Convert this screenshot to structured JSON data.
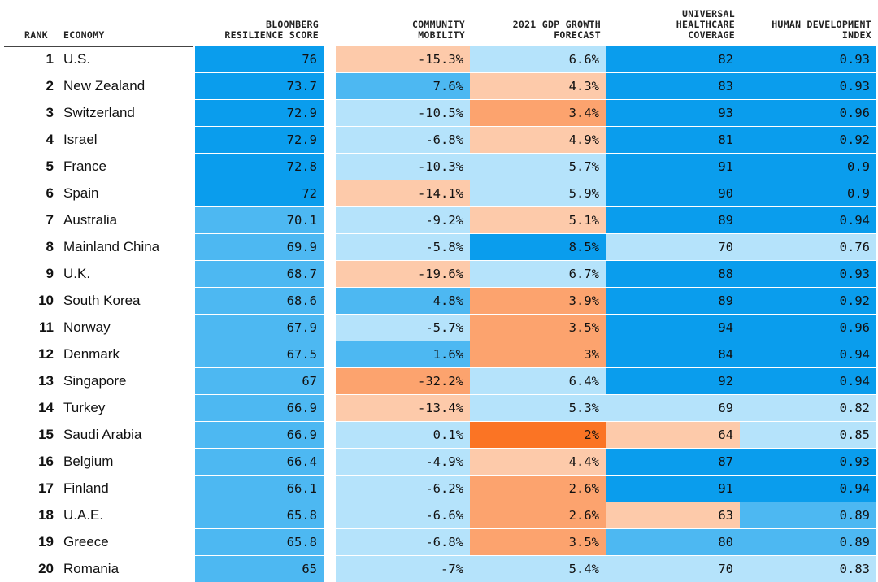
{
  "table": {
    "columns": [
      [
        "RANK"
      ],
      [
        "ECONOMY"
      ],
      [
        "BLOOMBERG",
        "RESILIENCE SCORE"
      ],
      [
        "COMMUNITY",
        "MOBILITY"
      ],
      [
        "2021 GDP GROWTH",
        "FORECAST"
      ],
      [
        "UNIVERSAL",
        "HEALTHCARE",
        "COVERAGE"
      ],
      [
        "HUMAN DEVELOPMENT",
        "INDEX"
      ]
    ],
    "rows": [
      {
        "rank": 1,
        "economy": "U.S.",
        "cells": [
          {
            "text": "76",
            "color": "#0a9ded"
          },
          {
            "text": "-15.3%",
            "color": "#fdcaaa"
          },
          {
            "text": "6.6%",
            "color": "#b5e3fb"
          },
          {
            "text": "82",
            "color": "#0a9ded"
          },
          {
            "text": "0.93",
            "color": "#0a9ded"
          }
        ]
      },
      {
        "rank": 2,
        "economy": "New Zealand",
        "cells": [
          {
            "text": "73.7",
            "color": "#0a9ded"
          },
          {
            "text": "7.6%",
            "color": "#4db8f2"
          },
          {
            "text": "4.3%",
            "color": "#fdcaaa"
          },
          {
            "text": "83",
            "color": "#0a9ded"
          },
          {
            "text": "0.93",
            "color": "#0a9ded"
          }
        ]
      },
      {
        "rank": 3,
        "economy": "Switzerland",
        "cells": [
          {
            "text": "72.9",
            "color": "#0a9ded"
          },
          {
            "text": "-10.5%",
            "color": "#b5e3fb"
          },
          {
            "text": "3.4%",
            "color": "#fca36e"
          },
          {
            "text": "93",
            "color": "#0a9ded"
          },
          {
            "text": "0.96",
            "color": "#0a9ded"
          }
        ]
      },
      {
        "rank": 4,
        "economy": "Israel",
        "cells": [
          {
            "text": "72.9",
            "color": "#0a9ded"
          },
          {
            "text": "-6.8%",
            "color": "#b5e3fb"
          },
          {
            "text": "4.9%",
            "color": "#fdcaaa"
          },
          {
            "text": "81",
            "color": "#0a9ded"
          },
          {
            "text": "0.92",
            "color": "#0a9ded"
          }
        ]
      },
      {
        "rank": 5,
        "economy": "France",
        "cells": [
          {
            "text": "72.8",
            "color": "#0a9ded"
          },
          {
            "text": "-10.3%",
            "color": "#b5e3fb"
          },
          {
            "text": "5.7%",
            "color": "#b5e3fb"
          },
          {
            "text": "91",
            "color": "#0a9ded"
          },
          {
            "text": "0.9",
            "color": "#0a9ded"
          }
        ]
      },
      {
        "rank": 6,
        "economy": "Spain",
        "cells": [
          {
            "text": "72",
            "color": "#0a9ded"
          },
          {
            "text": "-14.1%",
            "color": "#fdcaaa"
          },
          {
            "text": "5.9%",
            "color": "#b5e3fb"
          },
          {
            "text": "90",
            "color": "#0a9ded"
          },
          {
            "text": "0.9",
            "color": "#0a9ded"
          }
        ]
      },
      {
        "rank": 7,
        "economy": "Australia",
        "cells": [
          {
            "text": "70.1",
            "color": "#4db8f2"
          },
          {
            "text": "-9.2%",
            "color": "#b5e3fb"
          },
          {
            "text": "5.1%",
            "color": "#fdcaaa"
          },
          {
            "text": "89",
            "color": "#0a9ded"
          },
          {
            "text": "0.94",
            "color": "#0a9ded"
          }
        ]
      },
      {
        "rank": 8,
        "economy": "Mainland China",
        "cells": [
          {
            "text": "69.9",
            "color": "#4db8f2"
          },
          {
            "text": "-5.8%",
            "color": "#b5e3fb"
          },
          {
            "text": "8.5%",
            "color": "#0a9ded"
          },
          {
            "text": "70",
            "color": "#b5e3fb"
          },
          {
            "text": "0.76",
            "color": "#b5e3fb"
          }
        ]
      },
      {
        "rank": 9,
        "economy": "U.K.",
        "cells": [
          {
            "text": "68.7",
            "color": "#4db8f2"
          },
          {
            "text": "-19.6%",
            "color": "#fdcaaa"
          },
          {
            "text": "6.7%",
            "color": "#b5e3fb"
          },
          {
            "text": "88",
            "color": "#0a9ded"
          },
          {
            "text": "0.93",
            "color": "#0a9ded"
          }
        ]
      },
      {
        "rank": 10,
        "economy": "South Korea",
        "cells": [
          {
            "text": "68.6",
            "color": "#4db8f2"
          },
          {
            "text": "4.8%",
            "color": "#4db8f2"
          },
          {
            "text": "3.9%",
            "color": "#fca36e"
          },
          {
            "text": "89",
            "color": "#0a9ded"
          },
          {
            "text": "0.92",
            "color": "#0a9ded"
          }
        ]
      },
      {
        "rank": 11,
        "economy": "Norway",
        "cells": [
          {
            "text": "67.9",
            "color": "#4db8f2"
          },
          {
            "text": "-5.7%",
            "color": "#b5e3fb"
          },
          {
            "text": "3.5%",
            "color": "#fca36e"
          },
          {
            "text": "94",
            "color": "#0a9ded"
          },
          {
            "text": "0.96",
            "color": "#0a9ded"
          }
        ]
      },
      {
        "rank": 12,
        "economy": "Denmark",
        "cells": [
          {
            "text": "67.5",
            "color": "#4db8f2"
          },
          {
            "text": "1.6%",
            "color": "#4db8f2"
          },
          {
            "text": "3%",
            "color": "#fca36e"
          },
          {
            "text": "84",
            "color": "#0a9ded"
          },
          {
            "text": "0.94",
            "color": "#0a9ded"
          }
        ]
      },
      {
        "rank": 13,
        "economy": "Singapore",
        "cells": [
          {
            "text": "67",
            "color": "#4db8f2"
          },
          {
            "text": "-32.2%",
            "color": "#fca36e"
          },
          {
            "text": "6.4%",
            "color": "#b5e3fb"
          },
          {
            "text": "92",
            "color": "#0a9ded"
          },
          {
            "text": "0.94",
            "color": "#0a9ded"
          }
        ]
      },
      {
        "rank": 14,
        "economy": "Turkey",
        "cells": [
          {
            "text": "66.9",
            "color": "#4db8f2"
          },
          {
            "text": "-13.4%",
            "color": "#fdcaaa"
          },
          {
            "text": "5.3%",
            "color": "#b5e3fb"
          },
          {
            "text": "69",
            "color": "#b5e3fb"
          },
          {
            "text": "0.82",
            "color": "#b5e3fb"
          }
        ]
      },
      {
        "rank": 15,
        "economy": "Saudi Arabia",
        "cells": [
          {
            "text": "66.9",
            "color": "#4db8f2"
          },
          {
            "text": "0.1%",
            "color": "#b5e3fb"
          },
          {
            "text": "2%",
            "color": "#fb7424"
          },
          {
            "text": "64",
            "color": "#fdcaaa"
          },
          {
            "text": "0.85",
            "color": "#b5e3fb"
          }
        ]
      },
      {
        "rank": 16,
        "economy": "Belgium",
        "cells": [
          {
            "text": "66.4",
            "color": "#4db8f2"
          },
          {
            "text": "-4.9%",
            "color": "#b5e3fb"
          },
          {
            "text": "4.4%",
            "color": "#fdcaaa"
          },
          {
            "text": "87",
            "color": "#0a9ded"
          },
          {
            "text": "0.93",
            "color": "#0a9ded"
          }
        ]
      },
      {
        "rank": 17,
        "economy": "Finland",
        "cells": [
          {
            "text": "66.1",
            "color": "#4db8f2"
          },
          {
            "text": "-6.2%",
            "color": "#b5e3fb"
          },
          {
            "text": "2.6%",
            "color": "#fca36e"
          },
          {
            "text": "91",
            "color": "#0a9ded"
          },
          {
            "text": "0.94",
            "color": "#0a9ded"
          }
        ]
      },
      {
        "rank": 18,
        "economy": "U.A.E.",
        "cells": [
          {
            "text": "65.8",
            "color": "#4db8f2"
          },
          {
            "text": "-6.6%",
            "color": "#b5e3fb"
          },
          {
            "text": "2.6%",
            "color": "#fca36e"
          },
          {
            "text": "63",
            "color": "#fdcaaa"
          },
          {
            "text": "0.89",
            "color": "#4db8f2"
          }
        ]
      },
      {
        "rank": 19,
        "economy": "Greece",
        "cells": [
          {
            "text": "65.8",
            "color": "#4db8f2"
          },
          {
            "text": "-6.8%",
            "color": "#b5e3fb"
          },
          {
            "text": "3.5%",
            "color": "#fca36e"
          },
          {
            "text": "80",
            "color": "#4db8f2"
          },
          {
            "text": "0.89",
            "color": "#4db8f2"
          }
        ]
      },
      {
        "rank": 20,
        "economy": "Romania",
        "cells": [
          {
            "text": "65",
            "color": "#4db8f2"
          },
          {
            "text": "-7%",
            "color": "#b5e3fb"
          },
          {
            "text": "5.4%",
            "color": "#b5e3fb"
          },
          {
            "text": "70",
            "color": "#b5e3fb"
          },
          {
            "text": "0.83",
            "color": "#b5e3fb"
          }
        ]
      }
    ]
  }
}
